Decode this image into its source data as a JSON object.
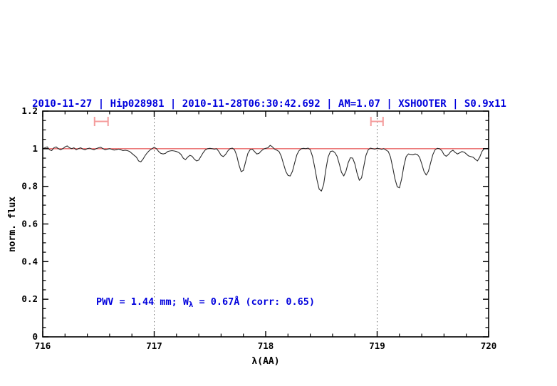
{
  "title": {
    "text": "2010-11-27 | Hip028981 | 2010-11-28T06:30:42.692 | AM=1.07 | XSHOOTER | S0.9x11",
    "color": "#0000dd"
  },
  "annotation": {
    "full_text": "PWV = 1.44 mm; Wλ = 0.67Å (corr: 0.65)",
    "pre": "PWV = 1.44 mm; W",
    "sub": "λ",
    "post": " = 0.67Å (corr: 0.65)",
    "color": "#0000dd"
  },
  "axes": {
    "x": {
      "label": "λ(AA)",
      "min": 716,
      "max": 720,
      "major_ticks": [
        716,
        717,
        718,
        719,
        720
      ],
      "tick_labels": [
        "716",
        "717",
        "718",
        "719",
        "720"
      ],
      "minor_step": 0.2
    },
    "y": {
      "label": "norm. flux",
      "min": 0,
      "max": 1.2,
      "major_ticks": [
        0,
        0.2,
        0.4,
        0.6,
        0.8,
        1,
        1.2
      ],
      "tick_labels": [
        "0",
        "0.2",
        "0.4",
        "0.6",
        "0.8",
        "1",
        "1.2"
      ],
      "minor_step": 0.05
    }
  },
  "chart_data": {
    "type": "line",
    "title": "2010-11-27 | Hip028981 | 2010-11-28T06:30:42.692 | AM=1.07 | XSHOOTER | S0.9x11",
    "xlabel": "λ(AA)",
    "ylabel": "norm. flux",
    "xlim": [
      716,
      720
    ],
    "ylim": [
      0,
      1.2
    ],
    "grid": false,
    "legend": "none",
    "colors": {
      "spectrum": "#2b2b2b",
      "continuum": "#e96a6a",
      "marker": "#f49c9c",
      "dotted": "#666666",
      "frame": "#000000"
    },
    "continuum": {
      "y": 1.0
    },
    "reference_lines_x": [
      717,
      719
    ],
    "markers": [
      {
        "x1": 716.465,
        "x2": 716.586,
        "y": 1.145
      },
      {
        "x1": 718.944,
        "x2": 719.053,
        "y": 1.145
      }
    ],
    "series": [
      {
        "name": "observed normalized spectrum",
        "points": [
          [
            716.0,
            1.0
          ],
          [
            716.02,
            1.005
          ],
          [
            716.04,
            1.01
          ],
          [
            716.06,
            0.995
          ],
          [
            716.08,
            0.99
          ],
          [
            716.1,
            1.005
          ],
          [
            716.12,
            1.01
          ],
          [
            716.14,
            1.0
          ],
          [
            716.16,
            0.995
          ],
          [
            716.18,
            1.0
          ],
          [
            716.2,
            1.01
          ],
          [
            716.22,
            1.015
          ],
          [
            716.24,
            1.005
          ],
          [
            716.26,
            1.0
          ],
          [
            716.28,
            1.005
          ],
          [
            716.3,
            0.995
          ],
          [
            716.32,
            1.0
          ],
          [
            716.34,
            1.005
          ],
          [
            716.36,
            0.998
          ],
          [
            716.38,
            0.995
          ],
          [
            716.4,
            1.0
          ],
          [
            716.42,
            1.003
          ],
          [
            716.44,
            0.998
          ],
          [
            716.46,
            0.995
          ],
          [
            716.48,
            1.0
          ],
          [
            716.5,
            1.005
          ],
          [
            716.52,
            1.008
          ],
          [
            716.54,
            1.0
          ],
          [
            716.56,
            0.995
          ],
          [
            716.58,
            0.998
          ],
          [
            716.6,
            1.0
          ],
          [
            716.62,
            0.997
          ],
          [
            716.64,
            0.993
          ],
          [
            716.66,
            0.995
          ],
          [
            716.68,
            0.998
          ],
          [
            716.7,
            0.995
          ],
          [
            716.72,
            0.99
          ],
          [
            716.74,
            0.992
          ],
          [
            716.76,
            0.99
          ],
          [
            716.78,
            0.985
          ],
          [
            716.8,
            0.975
          ],
          [
            716.82,
            0.965
          ],
          [
            716.84,
            0.955
          ],
          [
            716.86,
            0.935
          ],
          [
            716.88,
            0.93
          ],
          [
            716.9,
            0.945
          ],
          [
            716.92,
            0.965
          ],
          [
            716.94,
            0.98
          ],
          [
            716.96,
            0.992
          ],
          [
            716.98,
            1.0
          ],
          [
            717.0,
            1.008
          ],
          [
            717.02,
            1.0
          ],
          [
            717.04,
            0.985
          ],
          [
            717.06,
            0.975
          ],
          [
            717.08,
            0.972
          ],
          [
            717.1,
            0.975
          ],
          [
            717.12,
            0.985
          ],
          [
            717.14,
            0.988
          ],
          [
            717.16,
            0.99
          ],
          [
            717.18,
            0.988
          ],
          [
            717.2,
            0.985
          ],
          [
            717.22,
            0.98
          ],
          [
            717.24,
            0.97
          ],
          [
            717.26,
            0.95
          ],
          [
            717.28,
            0.942
          ],
          [
            717.3,
            0.955
          ],
          [
            717.32,
            0.965
          ],
          [
            717.34,
            0.96
          ],
          [
            717.36,
            0.945
          ],
          [
            717.38,
            0.935
          ],
          [
            717.4,
            0.94
          ],
          [
            717.42,
            0.96
          ],
          [
            717.44,
            0.98
          ],
          [
            717.46,
            0.995
          ],
          [
            717.48,
            1.0
          ],
          [
            717.5,
            1.002
          ],
          [
            717.52,
            1.0
          ],
          [
            717.54,
            0.998
          ],
          [
            717.56,
            1.0
          ],
          [
            717.58,
            0.985
          ],
          [
            717.6,
            0.965
          ],
          [
            717.62,
            0.958
          ],
          [
            717.64,
            0.97
          ],
          [
            717.66,
            0.988
          ],
          [
            717.68,
            1.0
          ],
          [
            717.7,
            1.003
          ],
          [
            717.72,
            0.995
          ],
          [
            717.74,
            0.965
          ],
          [
            717.76,
            0.915
          ],
          [
            717.78,
            0.878
          ],
          [
            717.8,
            0.885
          ],
          [
            717.82,
            0.93
          ],
          [
            717.84,
            0.975
          ],
          [
            717.86,
            0.995
          ],
          [
            717.88,
            0.998
          ],
          [
            717.9,
            0.985
          ],
          [
            717.92,
            0.972
          ],
          [
            717.94,
            0.975
          ],
          [
            717.96,
            0.988
          ],
          [
            717.98,
            0.998
          ],
          [
            718.0,
            1.002
          ],
          [
            718.02,
            1.005
          ],
          [
            718.04,
            1.018
          ],
          [
            718.06,
            1.01
          ],
          [
            718.08,
            0.998
          ],
          [
            718.1,
            0.992
          ],
          [
            718.12,
            0.985
          ],
          [
            718.14,
            0.96
          ],
          [
            718.16,
            0.92
          ],
          [
            718.18,
            0.88
          ],
          [
            718.2,
            0.858
          ],
          [
            718.22,
            0.855
          ],
          [
            718.24,
            0.88
          ],
          [
            718.26,
            0.925
          ],
          [
            718.28,
            0.968
          ],
          [
            718.3,
            0.99
          ],
          [
            718.32,
            1.0
          ],
          [
            718.34,
            1.002
          ],
          [
            718.36,
            1.0
          ],
          [
            718.38,
            1.003
          ],
          [
            718.4,
            0.995
          ],
          [
            718.42,
            0.96
          ],
          [
            718.44,
            0.9
          ],
          [
            718.46,
            0.835
          ],
          [
            718.48,
            0.785
          ],
          [
            718.5,
            0.775
          ],
          [
            718.52,
            0.81
          ],
          [
            718.54,
            0.89
          ],
          [
            718.56,
            0.955
          ],
          [
            718.58,
            0.985
          ],
          [
            718.6,
            0.988
          ],
          [
            718.62,
            0.98
          ],
          [
            718.64,
            0.96
          ],
          [
            718.66,
            0.92
          ],
          [
            718.68,
            0.875
          ],
          [
            718.7,
            0.855
          ],
          [
            718.72,
            0.88
          ],
          [
            718.74,
            0.925
          ],
          [
            718.76,
            0.952
          ],
          [
            718.78,
            0.95
          ],
          [
            718.8,
            0.92
          ],
          [
            718.82,
            0.87
          ],
          [
            718.84,
            0.832
          ],
          [
            718.86,
            0.845
          ],
          [
            718.88,
            0.905
          ],
          [
            718.9,
            0.965
          ],
          [
            718.92,
            0.995
          ],
          [
            718.94,
            1.003
          ],
          [
            718.96,
            1.0
          ],
          [
            718.98,
            0.998
          ],
          [
            719.0,
            1.002
          ],
          [
            719.02,
            1.0
          ],
          [
            719.04,
            0.997
          ],
          [
            719.06,
            1.0
          ],
          [
            719.08,
            0.993
          ],
          [
            719.1,
            0.985
          ],
          [
            719.12,
            0.955
          ],
          [
            719.14,
            0.9
          ],
          [
            719.16,
            0.84
          ],
          [
            719.18,
            0.798
          ],
          [
            719.2,
            0.792
          ],
          [
            719.22,
            0.84
          ],
          [
            719.24,
            0.91
          ],
          [
            719.26,
            0.958
          ],
          [
            719.28,
            0.972
          ],
          [
            719.3,
            0.97
          ],
          [
            719.32,
            0.968
          ],
          [
            719.34,
            0.972
          ],
          [
            719.36,
            0.97
          ],
          [
            719.38,
            0.955
          ],
          [
            719.4,
            0.92
          ],
          [
            719.42,
            0.88
          ],
          [
            719.44,
            0.86
          ],
          [
            719.46,
            0.88
          ],
          [
            719.48,
            0.925
          ],
          [
            719.5,
            0.97
          ],
          [
            719.52,
            0.995
          ],
          [
            719.54,
            1.002
          ],
          [
            719.56,
            1.0
          ],
          [
            719.58,
            0.99
          ],
          [
            719.6,
            0.968
          ],
          [
            719.62,
            0.96
          ],
          [
            719.64,
            0.97
          ],
          [
            719.66,
            0.985
          ],
          [
            719.68,
            0.992
          ],
          [
            719.7,
            0.98
          ],
          [
            719.72,
            0.972
          ],
          [
            719.74,
            0.978
          ],
          [
            719.76,
            0.985
          ],
          [
            719.78,
            0.982
          ],
          [
            719.8,
            0.972
          ],
          [
            719.82,
            0.962
          ],
          [
            719.84,
            0.958
          ],
          [
            719.86,
            0.955
          ],
          [
            719.88,
            0.945
          ],
          [
            719.9,
            0.935
          ],
          [
            719.92,
            0.955
          ],
          [
            719.94,
            0.985
          ],
          [
            719.96,
            1.0
          ],
          [
            719.98,
            1.0
          ],
          [
            720.0,
            1.002
          ]
        ]
      }
    ]
  }
}
